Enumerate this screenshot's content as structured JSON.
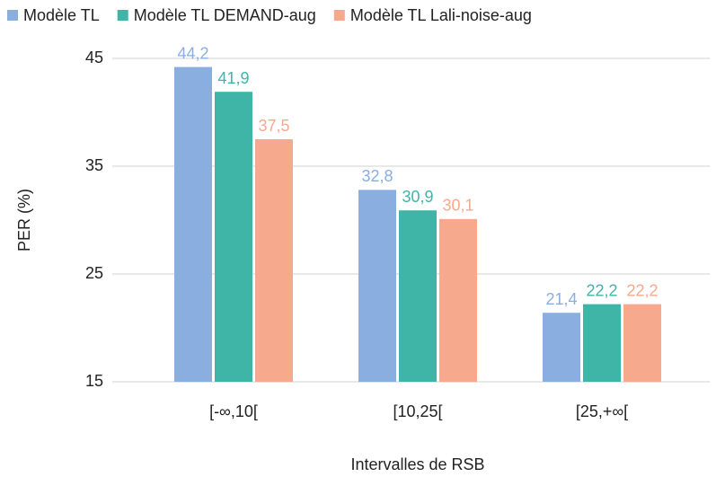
{
  "chart_data": {
    "type": "bar",
    "categories": [
      "[-∞,10[",
      "[10,25[",
      "[25,+∞["
    ],
    "series": [
      {
        "name": "Modèle TL",
        "color": "#8aaee0",
        "values": [
          44.2,
          32.8,
          21.4
        ],
        "value_labels": [
          "44,2",
          "32,8",
          "21,4"
        ]
      },
      {
        "name": "Modèle TL DEMAND-aug",
        "color": "#3fb5a8",
        "values": [
          41.9,
          30.9,
          22.2
        ],
        "value_labels": [
          "41,9",
          "30,9",
          "22,2"
        ]
      },
      {
        "name": "Modèle TL Lali-noise-aug",
        "color": "#f7a98e",
        "values": [
          37.5,
          30.1,
          22.2
        ],
        "value_labels": [
          "37,5",
          "30,1",
          "22,2"
        ]
      }
    ],
    "ylim": [
      15,
      45
    ],
    "yticks": [
      15,
      25,
      35,
      45
    ],
    "grid": true,
    "y_label": "PER (%)",
    "x_label": "Intervalles de RSB",
    "legend": "top"
  }
}
